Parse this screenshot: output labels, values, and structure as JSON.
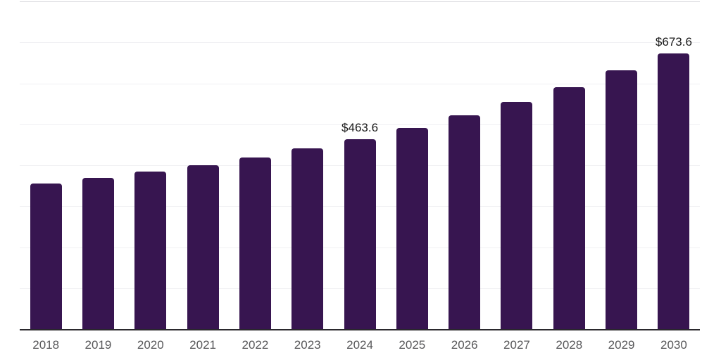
{
  "chart_data": {
    "type": "bar",
    "title": "",
    "xlabel": "",
    "ylabel": "",
    "categories": [
      "2018",
      "2019",
      "2020",
      "2021",
      "2022",
      "2023",
      "2024",
      "2025",
      "2026",
      "2027",
      "2028",
      "2029",
      "2030"
    ],
    "values": [
      355,
      369,
      384,
      400,
      419,
      441,
      463.6,
      491,
      522,
      555,
      591,
      631,
      673.6
    ],
    "data_labels": [
      "",
      "",
      "",
      "",
      "",
      "",
      "$463.6",
      "",
      "",
      "",
      "",
      "",
      "$673.6"
    ],
    "ylim": [
      0,
      800
    ],
    "grid_step": 100,
    "grid": true,
    "legend": false,
    "y_axis_labels_visible": false
  },
  "style": {
    "bar_color": "#371550",
    "axis_line_color": "#2a282d",
    "data_label_color": "#191919",
    "tick_label_color": "#58585a",
    "gridline_color": "#f0f0f3",
    "top_gridline_color": "#d8d8dc",
    "background_color": "#ffffff"
  }
}
